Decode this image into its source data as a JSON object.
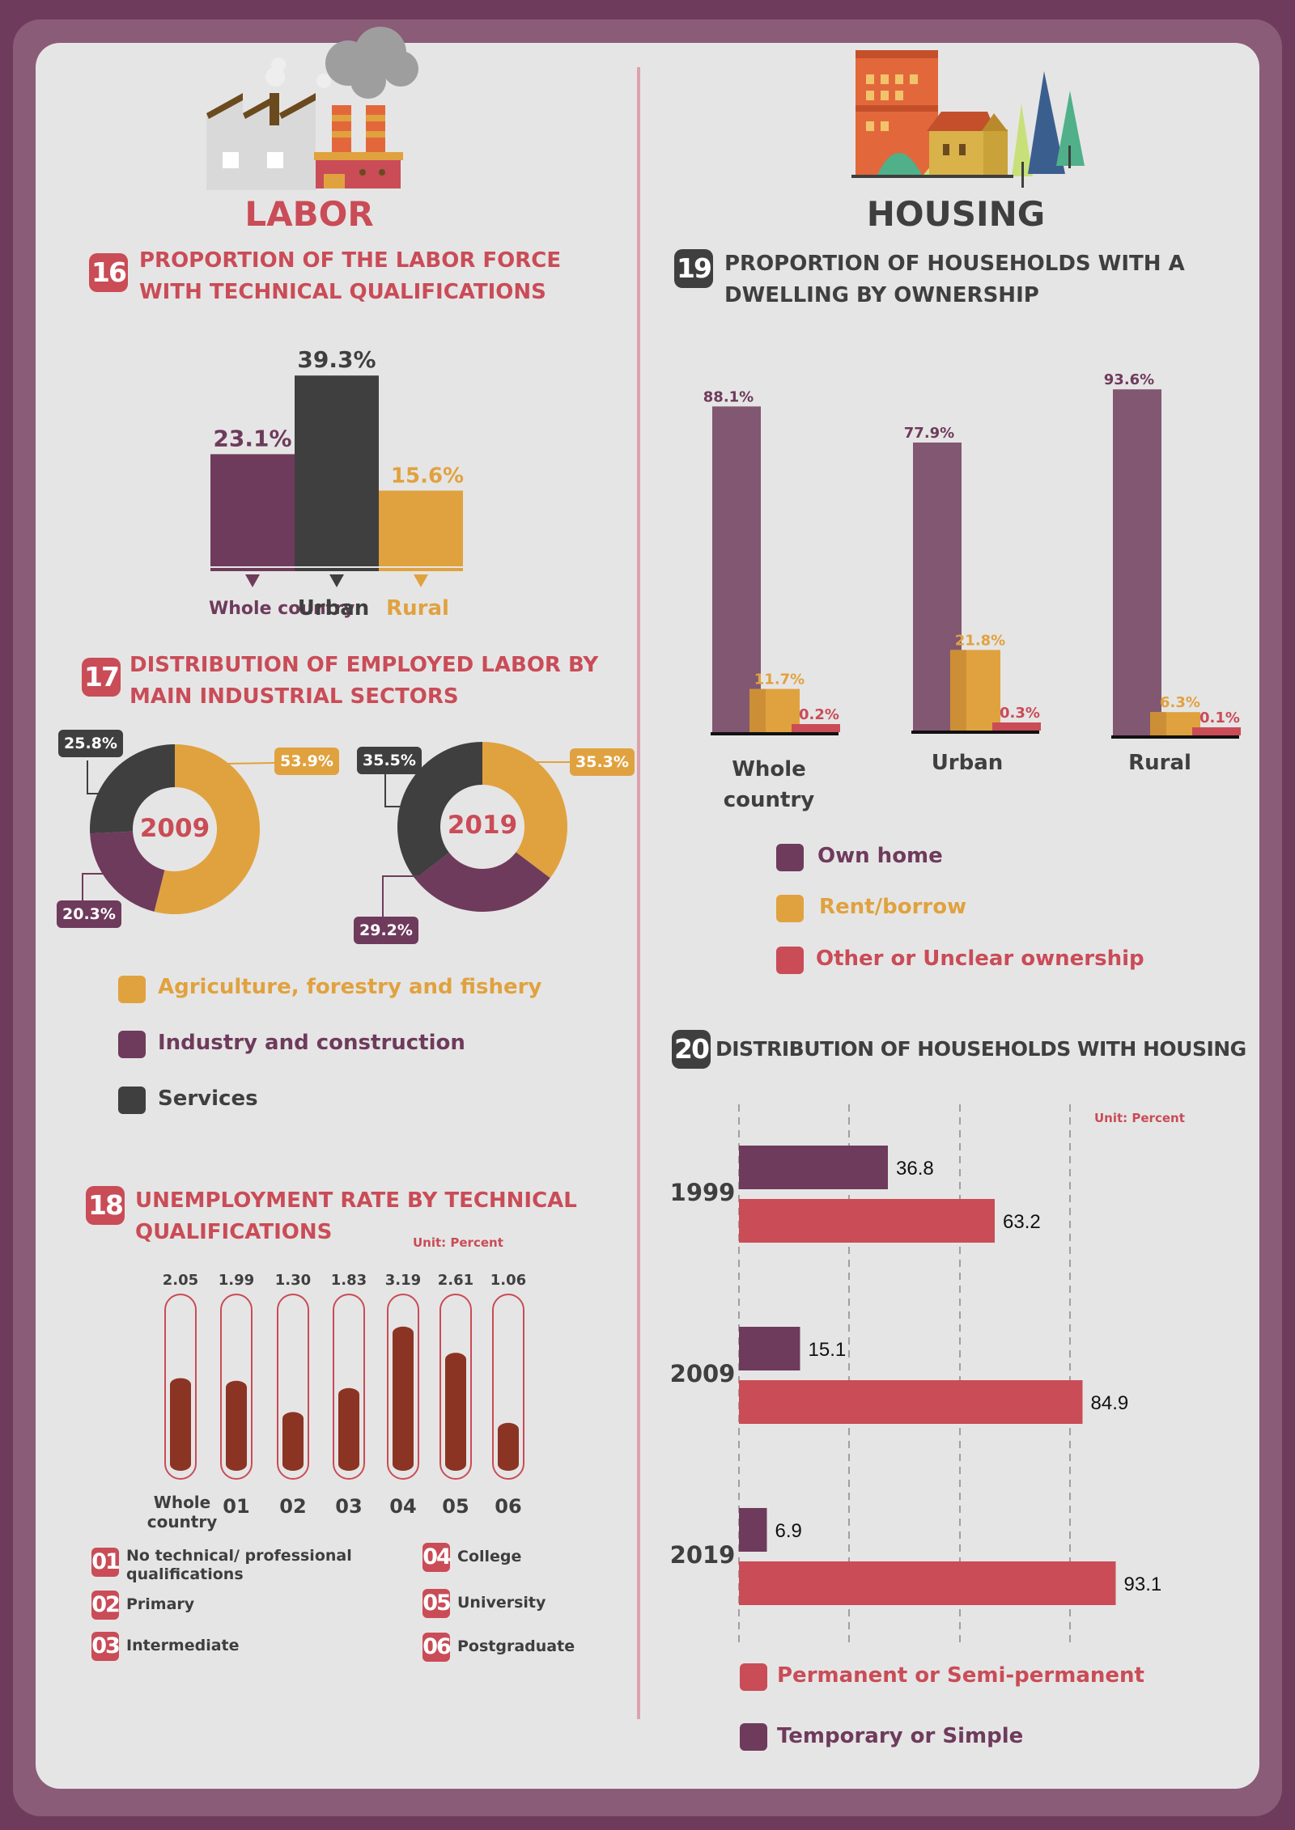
{
  "colors": {
    "plum": "#6e3b5c",
    "plum_light": "#815772",
    "dark": "#3f3f3f",
    "gold": "#e0a23f",
    "red": "#c94c57",
    "rust": "#8c3423",
    "page_bg": "#e6e5e5"
  },
  "labor": {
    "title": "LABOR",
    "s16": {
      "number": "16",
      "title_line1": "PROPORTION OF THE LABOR FORCE",
      "title_line2": "WITH TECHNICAL QUALIFICATIONS"
    },
    "s17": {
      "number": "17",
      "title_line1": "DISTRIBUTION OF EMPLOYED LABOR BY",
      "title_line2": "MAIN INDUSTRIAL SECTORS",
      "legend": [
        {
          "label": "Agriculture, forestry and fishery",
          "color": "#e0a23f"
        },
        {
          "label": "Industry and construction",
          "color": "#6e3b5c"
        },
        {
          "label": "Services",
          "color": "#3f3f3f"
        }
      ]
    },
    "s18": {
      "number": "18",
      "title_line1": "UNEMPLOYMENT RATE BY TECHNICAL",
      "title_line2": "QUALIFICATIONS",
      "unit": "Unit: Percent",
      "legend": [
        {
          "code": "01",
          "line1": "No technical/ professional",
          "line2": "qualifications"
        },
        {
          "code": "02",
          "line1": "Primary",
          "line2": ""
        },
        {
          "code": "03",
          "line1": "Intermediate",
          "line2": ""
        },
        {
          "code": "04",
          "line1": "College",
          "line2": ""
        },
        {
          "code": "05",
          "line1": "University",
          "line2": ""
        },
        {
          "code": "06",
          "line1": "Postgraduate",
          "line2": ""
        }
      ]
    }
  },
  "housing": {
    "title": "HOUSING",
    "s19": {
      "number": "19",
      "title_line1": "PROPORTION OF HOUSEHOLDS WITH A",
      "title_line2": "DWELLING BY OWNERSHIP",
      "legend": [
        {
          "label": "Own home",
          "color": "#6e3b5c"
        },
        {
          "label": "Rent/borrow",
          "color": "#e0a23f"
        },
        {
          "label": "Other or Unclear ownership",
          "color": "#c94c57"
        }
      ]
    },
    "s20": {
      "number": "20",
      "title": "DISTRIBUTION OF HOUSEHOLDS WITH HOUSING",
      "unit": "Unit: Percent",
      "legend": [
        {
          "label": "Permanent or Semi-permanent",
          "color": "#c94c57"
        },
        {
          "label": "Temporary or Simple",
          "color": "#6e3b5c"
        }
      ]
    }
  },
  "chart_data": [
    {
      "id": "16",
      "type": "bar",
      "title": "PROPORTION OF THE LABOR FORCE WITH TECHNICAL QUALIFICATIONS",
      "categories": [
        "Whole country",
        "Urban",
        "Rural"
      ],
      "values": [
        23.1,
        39.3,
        15.6
      ],
      "labels": [
        "23.1%",
        "39.3%",
        "15.6%"
      ],
      "colors": [
        "#6e3b5c",
        "#3f3f3f",
        "#e0a23f"
      ]
    },
    {
      "id": "17",
      "type": "pie",
      "title": "DISTRIBUTION OF EMPLOYED LABOR BY MAIN INDUSTRIAL SECTORS",
      "series_names": [
        "Agriculture, forestry and fishery",
        "Industry and construction",
        "Services"
      ],
      "donuts": [
        {
          "year": "2009",
          "values": [
            53.9,
            20.3,
            25.8
          ],
          "labels": [
            "53.9%",
            "20.3%",
            "25.8%"
          ]
        },
        {
          "year": "2019",
          "values": [
            35.3,
            29.2,
            35.5
          ],
          "labels": [
            "35.3%",
            "29.2%",
            "35.5%"
          ]
        }
      ]
    },
    {
      "id": "18",
      "type": "bar",
      "title": "UNEMPLOYMENT RATE BY TECHNICAL QUALIFICATIONS",
      "unit": "Unit: Percent",
      "categories": [
        "Whole country",
        "01",
        "02",
        "03",
        "04",
        "05",
        "06"
      ],
      "values": [
        2.05,
        1.99,
        1.3,
        1.83,
        3.19,
        2.61,
        1.06
      ],
      "labels": [
        "2.05",
        "1.99",
        "1.30",
        "1.83",
        "3.19",
        "2.61",
        "1.06"
      ]
    },
    {
      "id": "19",
      "type": "bar",
      "title": "PROPORTION OF HOUSEHOLDS WITH A DWELLING BY OWNERSHIP",
      "categories": [
        "Whole country",
        "Urban",
        "Rural"
      ],
      "series": [
        {
          "name": "Own home",
          "values": [
            88.1,
            77.9,
            93.6
          ],
          "labels": [
            "88.1%",
            "77.9%",
            "93.6%"
          ],
          "color": "#815772"
        },
        {
          "name": "Rent/borrow",
          "values": [
            11.7,
            21.8,
            6.3
          ],
          "labels": [
            "11.7%",
            "21.8%",
            "6.3%"
          ],
          "color": "#e0a23f"
        },
        {
          "name": "Other or Unclear ownership",
          "values": [
            0.2,
            0.3,
            0.1
          ],
          "labels": [
            "0.2%",
            "0.3%",
            "0.1%"
          ],
          "color": "#c94c57"
        }
      ]
    },
    {
      "id": "20",
      "type": "bar",
      "orientation": "horizontal",
      "title": "DISTRIBUTION OF HOUSEHOLDS WITH HOUSING",
      "unit": "Unit: Percent",
      "categories": [
        "1999",
        "2009",
        "2019"
      ],
      "series": [
        {
          "name": "Temporary or Simple",
          "values": [
            36.8,
            15.1,
            6.9
          ],
          "labels": [
            "36.8",
            "15.1",
            "6.9"
          ],
          "color": "#6e3b5c"
        },
        {
          "name": "Permanent or Semi-permanent",
          "values": [
            63.2,
            84.9,
            93.1
          ],
          "labels": [
            "63.2",
            "84.9",
            "93.1"
          ],
          "color": "#c94c57"
        }
      ],
      "grid": true
    }
  ]
}
